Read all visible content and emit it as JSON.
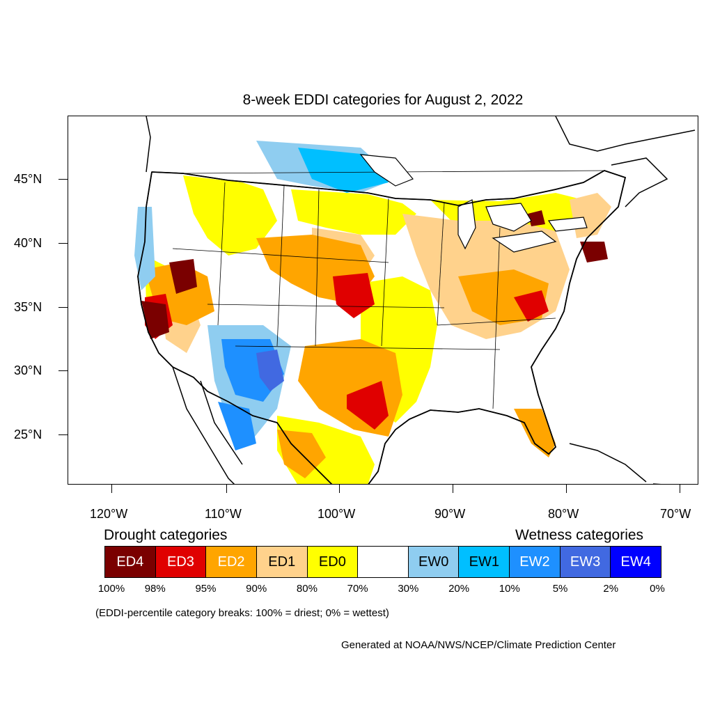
{
  "title": "8-week EDDI categories for August 2, 2022",
  "lat_labels": [
    "45°N",
    "40°N",
    "35°N",
    "30°N",
    "25°N"
  ],
  "lon_labels": [
    "120°W",
    "110°W",
    "100°W",
    "90°W",
    "80°W",
    "70°W"
  ],
  "drought_heading": "Drought categories",
  "wetness_heading": "Wetness categories",
  "legend": [
    {
      "label": "ED4",
      "color": "#7a0000",
      "text_color": "#ffffff"
    },
    {
      "label": "ED3",
      "color": "#e00000",
      "text_color": "#ffffff"
    },
    {
      "label": "ED2",
      "color": "#ffa500",
      "text_color": "#ffffff"
    },
    {
      "label": "ED1",
      "color": "#ffd28c",
      "text_color": "#000000"
    },
    {
      "label": "ED0",
      "color": "#ffff00",
      "text_color": "#000000"
    },
    {
      "label": "",
      "color": "#ffffff",
      "text_color": "#000000"
    },
    {
      "label": "EW0",
      "color": "#8fcdf0",
      "text_color": "#000000"
    },
    {
      "label": "EW1",
      "color": "#00bfff",
      "text_color": "#000000"
    },
    {
      "label": "EW2",
      "color": "#1e90ff",
      "text_color": "#ffffff"
    },
    {
      "label": "EW3",
      "color": "#4169e1",
      "text_color": "#ffffff"
    },
    {
      "label": "EW4",
      "color": "#0000ff",
      "text_color": "#ffffff"
    }
  ],
  "breaks": [
    "100%",
    "98%",
    "95%",
    "90%",
    "80%",
    "70%",
    "30%",
    "20%",
    "10%",
    "5%",
    "2%",
    "0%"
  ],
  "note": "(EDDI-percentile category breaks: 100% = driest; 0% = wettest)",
  "credit": "Generated at NOAA/NWS/NCEP/Climate Prediction Center"
}
